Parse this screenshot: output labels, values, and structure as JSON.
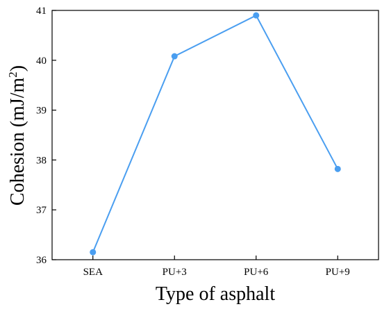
{
  "chart_data": {
    "type": "line",
    "categories": [
      "SEA",
      "PU+3",
      "PU+6",
      "PU+9"
    ],
    "series": [
      {
        "values": [
          36.15,
          40.08,
          40.9,
          37.82
        ]
      }
    ],
    "xlabel": "Type of asphalt",
    "ylabel_main": "Cohesion (mJ/m",
    "ylabel_sup": "2",
    "ylabel_close": ")",
    "ylim": [
      36,
      41
    ],
    "yticks": [
      "36",
      "37",
      "38",
      "39",
      "40",
      "41"
    ],
    "grid": false,
    "colors": {
      "series": "#4a9ef0",
      "axis": "#000000"
    }
  }
}
